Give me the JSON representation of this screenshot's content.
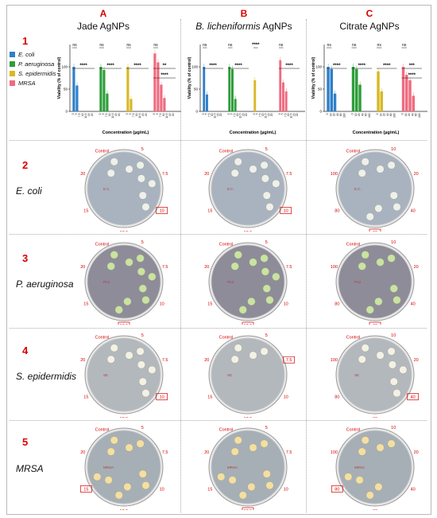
{
  "columns": [
    {
      "letter": "A",
      "title": "Jade AgNPs"
    },
    {
      "letter": "B",
      "title_italic": "B. licheniformis",
      "title_rest": " AgNPs"
    },
    {
      "letter": "C",
      "title": "Citrate AgNPs"
    }
  ],
  "rows": [
    {
      "num": "1"
    },
    {
      "num": "2",
      "name": "E. coli"
    },
    {
      "num": "3",
      "name": "P. aeruginosa"
    },
    {
      "num": "4",
      "name": "S. epidermidis"
    },
    {
      "num": "5",
      "name": "MRSA"
    }
  ],
  "legend": [
    {
      "label": "E. coli",
      "color": "#2f7fc8"
    },
    {
      "label": "P. aeruginosa",
      "color": "#2e9e3a"
    },
    {
      "label": "S. epidermidis",
      "color": "#d9b826"
    },
    {
      "label": "MRSA",
      "color": "#f06b80"
    }
  ],
  "chart_common": {
    "ylabel": "Viability (% of control)",
    "xlabel": "Concentration (µg/mL)"
  },
  "chart_data": [
    {
      "type": "bar",
      "panel": "A",
      "ylim": [
        0,
        150
      ],
      "yticks": [
        0,
        50,
        100
      ],
      "groups": [
        {
          "name": "E. coli",
          "categories": [
            "0",
            "5",
            "7.5",
            "10",
            "12.5",
            "15",
            "20"
          ],
          "values": [
            100,
            58,
            0,
            0,
            0,
            0,
            0
          ],
          "annotations": [
            "ns",
            "****"
          ]
        },
        {
          "name": "P. aeruginosa",
          "categories": [
            "0",
            "5",
            "7.5",
            "10",
            "12.5",
            "15",
            "20"
          ],
          "values": [
            100,
            93,
            40,
            0,
            0,
            0,
            0
          ],
          "annotations": [
            "ns",
            "****"
          ]
        },
        {
          "name": "S. epidermidis",
          "categories": [
            "0",
            "5",
            "7.5",
            "10",
            "12.5",
            "15",
            "20"
          ],
          "values": [
            100,
            28,
            0,
            0,
            0,
            0,
            0
          ],
          "annotations": [
            "ns",
            "****"
          ]
        },
        {
          "name": "MRSA",
          "categories": [
            "0",
            "5",
            "7.5",
            "10",
            "12.5",
            "15",
            "20"
          ],
          "values": [
            130,
            110,
            60,
            30,
            0,
            0,
            0
          ],
          "annotations": [
            "ns",
            "**",
            "****"
          ]
        }
      ]
    },
    {
      "type": "bar",
      "panel": "B",
      "ylim": [
        0,
        150
      ],
      "yticks": [
        0,
        50,
        100
      ],
      "groups": [
        {
          "name": "E. coli",
          "categories": [
            "0",
            "5",
            "7.5",
            "10",
            "12.5",
            "15",
            "20"
          ],
          "values": [
            100,
            38,
            0,
            0,
            0,
            0,
            0
          ],
          "annotations": [
            "ns",
            "****"
          ]
        },
        {
          "name": "P. aeruginosa",
          "categories": [
            "0",
            "5",
            "7.5",
            "10",
            "12.5",
            "15",
            "20"
          ],
          "values": [
            100,
            95,
            28,
            0,
            0,
            0,
            0
          ],
          "annotations": [
            "ns",
            "****"
          ]
        },
        {
          "name": "S. epidermidis",
          "categories": [
            "0",
            "5",
            "7.5",
            "10",
            "12.5",
            "15",
            "20"
          ],
          "values": [
            70,
            0,
            0,
            0,
            0,
            0,
            0
          ],
          "annotations": [
            "****"
          ]
        },
        {
          "name": "MRSA",
          "categories": [
            "0",
            "5",
            "7.5",
            "10",
            "12.5",
            "15",
            "20"
          ],
          "values": [
            115,
            65,
            45,
            0,
            0,
            0,
            0
          ],
          "annotations": [
            "ns",
            "****"
          ]
        }
      ]
    },
    {
      "type": "bar",
      "panel": "C",
      "ylim": [
        0,
        150
      ],
      "yticks": [
        0,
        50,
        100
      ],
      "groups": [
        {
          "name": "E. coli",
          "categories": [
            "0",
            "10",
            "20",
            "40",
            "60",
            "100"
          ],
          "values": [
            100,
            95,
            40,
            0,
            0,
            0
          ],
          "annotations": [
            "ns",
            "****"
          ]
        },
        {
          "name": "P. aeruginosa",
          "categories": [
            "0",
            "10",
            "20",
            "40",
            "60",
            "100"
          ],
          "values": [
            100,
            95,
            60,
            0,
            0,
            0
          ],
          "annotations": [
            "ns",
            "****"
          ]
        },
        {
          "name": "S. epidermidis",
          "categories": [
            "0",
            "10",
            "20",
            "40",
            "60",
            "100"
          ],
          "values": [
            90,
            45,
            0,
            0,
            0,
            0
          ],
          "annotations": [
            "ns",
            "****"
          ]
        },
        {
          "name": "MRSA",
          "categories": [
            "0",
            "10",
            "20",
            "40",
            "60",
            "100"
          ],
          "values": [
            100,
            82,
            70,
            35,
            0,
            0
          ],
          "annotations": [
            "ns",
            "***",
            "****"
          ]
        }
      ]
    }
  ],
  "plates": {
    "A": {
      "labels": [
        "Control",
        "5",
        "7.5",
        "10",
        "12.5",
        "15",
        "20"
      ],
      "boxed": {
        "E. coli": "10",
        "P. aeruginosa": "12.5",
        "S. epidermidis": "10",
        "MRSA": "15"
      }
    },
    "B": {
      "labels": [
        "Control",
        "5",
        "7.5",
        "10",
        "12.5",
        "15",
        "20"
      ],
      "boxed": {
        "E. coli": "10",
        "P. aeruginosa": "12.5",
        "S. epidermidis": "7.5",
        "MRSA": "12.5"
      }
    },
    "C": {
      "labels": [
        "Control",
        "10",
        "20",
        "40",
        "60",
        "80",
        "100"
      ],
      "boxed": {
        "E. coli": "60",
        "P. aeruginosa": "60",
        "S. epidermidis": "40",
        "MRSA": "80"
      }
    }
  },
  "plate_marks": {
    "E. coli": "E.C.",
    "P. aeruginosa": "PA2",
    "S. epidermidis": "SE",
    "MRSA": "MRSA"
  },
  "colony_colors": {
    "E. coli": "#eef0ea",
    "P. aeruginosa": "#c9e3a0",
    "S. epidermidis": "#f4f1e4",
    "MRSA": "#f4dfa0"
  },
  "agar_colors": {
    "E. coli": "#a9b3bf",
    "P. aeruginosa": "#8e8c98",
    "S. epidermidis": "#b3b8bd",
    "MRSA": "#a7afb6"
  }
}
